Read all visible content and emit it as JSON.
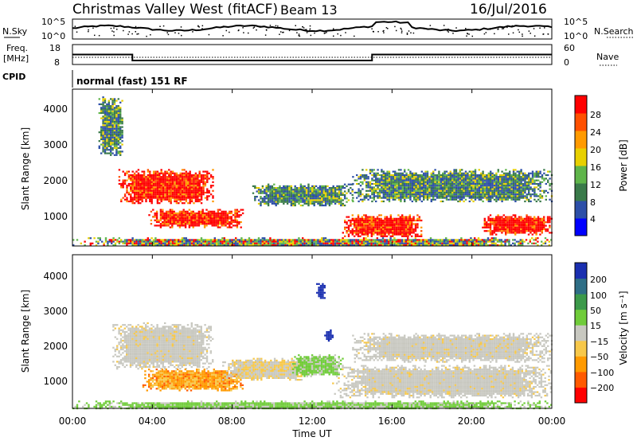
{
  "header": {
    "title": "Christmas Valley West (fitACF)",
    "beam": "Beam 13",
    "date": "16/Jul/2016"
  },
  "noise_panel": {
    "left_label": "N.Sky",
    "right_label": "N.Search",
    "left_ticks": [
      "10^5",
      "10^0"
    ],
    "right_ticks": [
      "10^5",
      "10^0"
    ]
  },
  "freq_panel": {
    "left_label_1": "Freq.",
    "left_label_2": "[MHz]",
    "left_ticks": [
      "18",
      "8"
    ],
    "right_label": "Nave",
    "right_ticks": [
      "60",
      "0"
    ]
  },
  "cpid": {
    "label": "CPID",
    "mode": "normal (fast) 151 RF"
  },
  "x_axis": {
    "label": "Time UT",
    "ticks": [
      "00:00",
      "04:00",
      "08:00",
      "12:00",
      "16:00",
      "20:00",
      "00:00"
    ]
  },
  "power_panel": {
    "ylabel": "Slant Range [km]",
    "yticks": [
      "1000",
      "2000",
      "3000",
      "4000"
    ],
    "colorbar_label": "Power [dB]",
    "colorbar_ticks": [
      "4",
      "8",
      "12",
      "16",
      "20",
      "24",
      "28"
    ],
    "colorbar_colors": [
      "#0000ff",
      "#2d4fa8",
      "#3a7a4a",
      "#5fb54a",
      "#e8d000",
      "#ff9a00",
      "#ff5000",
      "#ff0000"
    ]
  },
  "velocity_panel": {
    "ylabel": "Slant Range [km]",
    "yticks": [
      "1000",
      "2000",
      "3000",
      "4000"
    ],
    "colorbar_label": "Velocity [m s⁻¹]",
    "colorbar_ticks": [
      "200",
      "100",
      "50",
      "15",
      "−15",
      "−50",
      "−100",
      "−200"
    ],
    "colorbar_colors": [
      "#1a2fb0",
      "#2e6e86",
      "#3c9a4a",
      "#70cc3a",
      "#c8c8c0",
      "#f7c84a",
      "#ff9a00",
      "#ff5a00",
      "#ff0000"
    ]
  },
  "chart_data": {
    "type": "heatmap",
    "x_range_hours": [
      0,
      24
    ],
    "y_range_km": [
      180,
      4500
    ],
    "frequency_steps_mhz": [
      {
        "from_hour": 0,
        "to_hour": 3,
        "value": 13
      },
      {
        "from_hour": 3,
        "to_hour": 15,
        "value": 10
      },
      {
        "from_hour": 15,
        "to_hour": 24,
        "value": 13
      }
    ],
    "power_regions": [
      {
        "hour_start": 2.3,
        "hour_end": 7.0,
        "range_start_km": 1350,
        "range_end_km": 2300,
        "level": "strong"
      },
      {
        "hour_start": 3.8,
        "hour_end": 8.5,
        "range_start_km": 700,
        "range_end_km": 1200,
        "level": "strong"
      },
      {
        "hour_start": 13.5,
        "hour_end": 17.5,
        "range_start_km": 450,
        "range_end_km": 1050,
        "level": "strong"
      },
      {
        "hour_start": 20.5,
        "hour_end": 24.0,
        "range_start_km": 500,
        "range_end_km": 1050,
        "level": "strong"
      },
      {
        "hour_start": 0.0,
        "hour_end": 24.0,
        "range_start_km": 180,
        "range_end_km": 420,
        "level": "medium"
      },
      {
        "hour_start": 9.0,
        "hour_end": 14.0,
        "range_start_km": 1300,
        "range_end_km": 1900,
        "level": "weak"
      },
      {
        "hour_start": 14.0,
        "hour_end": 24.0,
        "range_start_km": 1400,
        "range_end_km": 2300,
        "level": "weak"
      },
      {
        "hour_start": 1.3,
        "hour_end": 2.5,
        "range_start_km": 2700,
        "range_end_km": 4300,
        "level": "weak"
      }
    ],
    "velocity_regions": [
      {
        "hour_start": 2.0,
        "hour_end": 7.0,
        "range_start_km": 1300,
        "range_end_km": 2600,
        "velocity_mps": -10
      },
      {
        "hour_start": 3.5,
        "hour_end": 8.5,
        "range_start_km": 700,
        "range_end_km": 1300,
        "velocity_mps": -60
      },
      {
        "hour_start": 7.5,
        "hour_end": 12.0,
        "range_start_km": 1000,
        "range_end_km": 1600,
        "velocity_mps": -20
      },
      {
        "hour_start": 11.0,
        "hour_end": 13.5,
        "range_start_km": 1100,
        "range_end_km": 1700,
        "velocity_mps": 30
      },
      {
        "hour_start": 13.0,
        "hour_end": 24.0,
        "range_start_km": 500,
        "range_end_km": 1400,
        "velocity_mps": 0
      },
      {
        "hour_start": 14.0,
        "hour_end": 24.0,
        "range_start_km": 1500,
        "range_end_km": 2300,
        "velocity_mps": 0
      },
      {
        "hour_start": 0.0,
        "hour_end": 24.0,
        "range_start_km": 180,
        "range_end_km": 400,
        "velocity_mps": 40
      },
      {
        "hour_start": 12.6,
        "hour_end": 13.0,
        "range_start_km": 2100,
        "range_end_km": 2400,
        "velocity_mps": 150
      },
      {
        "hour_start": 12.2,
        "hour_end": 12.6,
        "range_start_km": 3300,
        "range_end_km": 3700,
        "velocity_mps": 150
      }
    ]
  }
}
